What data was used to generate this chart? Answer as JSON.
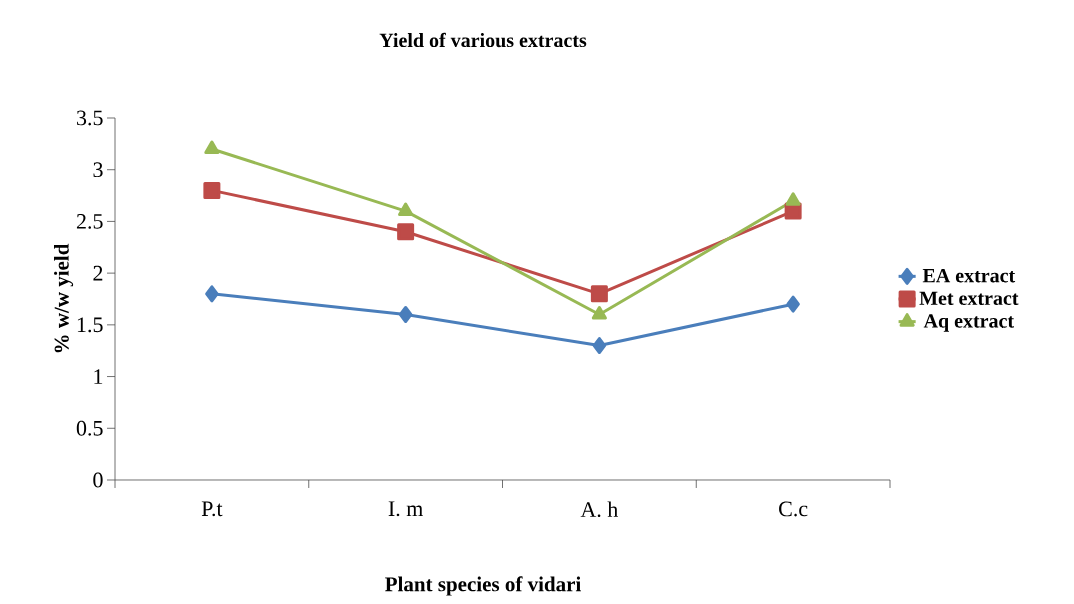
{
  "chart_data": {
    "type": "line",
    "title": "Yield of various extracts",
    "xlabel": "Plant species of vidari",
    "ylabel": "% w/w yield",
    "categories": [
      "P.t",
      "I. m",
      "A. h",
      "C.c"
    ],
    "series": [
      {
        "name": "EA extract",
        "color": "#4a7ebb",
        "marker": "diamond",
        "values": [
          1.8,
          1.6,
          1.3,
          1.7
        ]
      },
      {
        "name": "Met extract",
        "color": "#be4b48",
        "marker": "square",
        "values": [
          2.8,
          2.4,
          1.8,
          2.6
        ]
      },
      {
        "name": "Aq extract",
        "color": "#98b954",
        "marker": "triangle",
        "values": [
          3.2,
          2.6,
          1.6,
          2.7
        ]
      }
    ],
    "ylim": [
      0,
      3.5
    ],
    "yticks": [
      0,
      0.5,
      1,
      1.5,
      2,
      2.5,
      3,
      3.5
    ],
    "grid": false,
    "legend": "right",
    "line_style": "solid"
  }
}
